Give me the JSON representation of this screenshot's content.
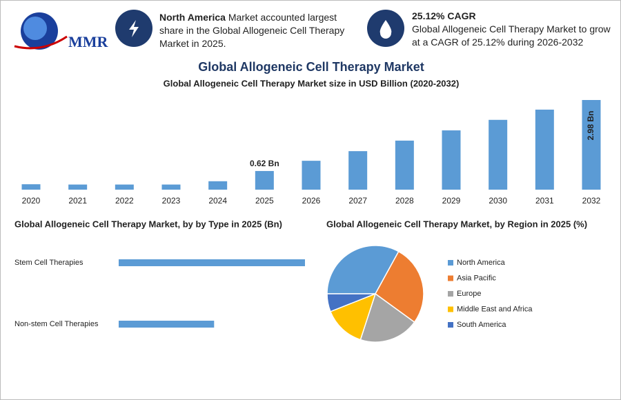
{
  "header": {
    "logo": "MMR",
    "info": [
      {
        "highlight": "North America",
        "text": "Market accounted largest share in the Global Allogeneic Cell Therapy Market in 2025."
      },
      {
        "highlight": "25.12% CAGR",
        "text": "Global Allogeneic Cell Therapy Market to grow at a CAGR of 25.12% during 2026-2032"
      }
    ],
    "title": "Global Allogeneic Cell Therapy Market"
  },
  "chart_data": [
    {
      "type": "bar",
      "title": "Global Allogeneic Cell Therapy Market size in USD Billion (2020-2032)",
      "categories": [
        "2020",
        "2021",
        "2022",
        "2023",
        "2024",
        "2025",
        "2026",
        "2027",
        "2028",
        "2029",
        "2030",
        "2031",
        "2032"
      ],
      "values": [
        0.18,
        0.17,
        0.17,
        0.17,
        0.28,
        0.62,
        0.96,
        1.28,
        1.63,
        1.97,
        2.32,
        2.66,
        2.98
      ],
      "value_labels": [
        null,
        null,
        null,
        null,
        null,
        "0.62 Bn",
        null,
        null,
        null,
        null,
        null,
        null,
        "2.98 Bn"
      ],
      "color": "#5b9bd5"
    },
    {
      "type": "bar",
      "orientation": "horizontal",
      "title": "Global Allogeneic Cell Therapy Market, by by Type in 2025 (Bn)",
      "categories": [
        "Stem Cell Therapies",
        "Non-stem Cell Therapies"
      ],
      "values": [
        0.41,
        0.21
      ],
      "color": "#5b9bd5"
    },
    {
      "type": "pie",
      "title": "Global Allogeneic Cell Therapy Market, by Region in 2025 (%)",
      "categories": [
        "North America",
        "Asia Pacific",
        "Europe",
        "Middle East and Africa",
        "South America"
      ],
      "values": [
        33,
        27,
        20,
        14,
        6
      ],
      "colors": [
        "#5b9bd5",
        "#ed7d31",
        "#a5a5a5",
        "#ffc000",
        "#4472c4"
      ]
    }
  ]
}
